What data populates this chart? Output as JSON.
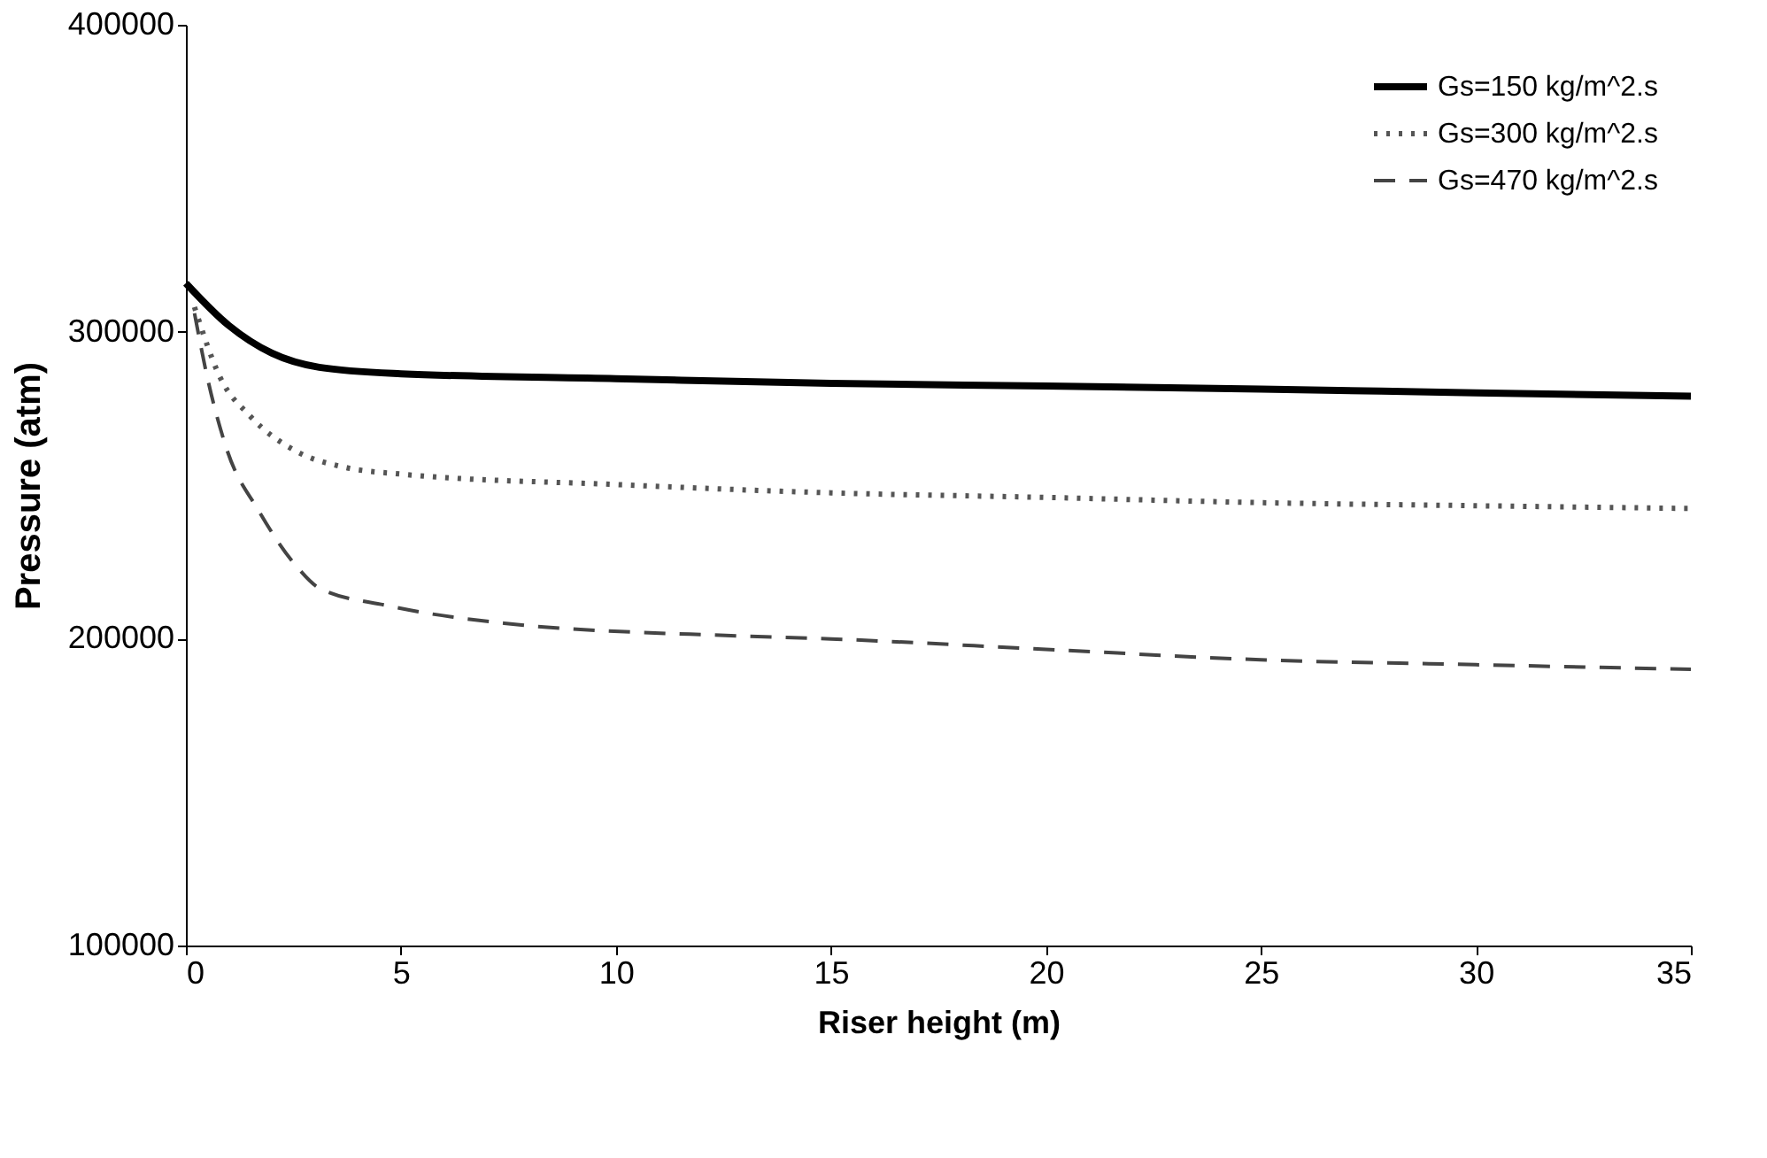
{
  "chart_data": {
    "type": "line",
    "xlabel": "Riser height (m)",
    "ylabel": "Pressure (atm)",
    "xlim": [
      0,
      35
    ],
    "xticks": [
      0,
      5,
      10,
      15,
      20,
      25,
      30,
      35
    ],
    "ylim": [
      100000,
      400000
    ],
    "yticks": [
      100000,
      200000,
      300000,
      400000
    ],
    "grid": false,
    "legend": "top right",
    "marker": "none",
    "series": [
      {
        "name": "Gs=150 kg/m^2.s",
        "color": "#000000",
        "line_style": "solid",
        "x": [
          0,
          1,
          2,
          3.1,
          5,
          10,
          15,
          20,
          25,
          30,
          35
        ],
        "values": [
          315800,
          302000,
          293000,
          288400,
          286300,
          284700,
          283200,
          282300,
          281300,
          280100,
          279000
        ]
      },
      {
        "name": "Gs=300 kg/m^2.s",
        "color": "#555555",
        "line_style": "dotted",
        "x": [
          0.2,
          0.8,
          1.5,
          2.6,
          3.7,
          5,
          10,
          15,
          20,
          25,
          30,
          35
        ],
        "values": [
          308000,
          285000,
          272400,
          260800,
          255800,
          253600,
          250200,
          247500,
          246000,
          244300,
          243300,
          242400
        ]
      },
      {
        "name": "Gs=470 kg/m^2.s",
        "color": "#444444",
        "line_style": "dashed",
        "x": [
          0.2,
          0.5,
          0.95,
          1.7,
          2.6,
          3.1,
          4.7,
          7.4,
          12.8,
          15,
          20,
          25,
          30,
          35
        ],
        "values": [
          306000,
          285000,
          261700,
          241500,
          223100,
          216500,
          210700,
          205000,
          200900,
          199900,
          196500,
          193100,
          191500,
          190000
        ]
      }
    ]
  }
}
